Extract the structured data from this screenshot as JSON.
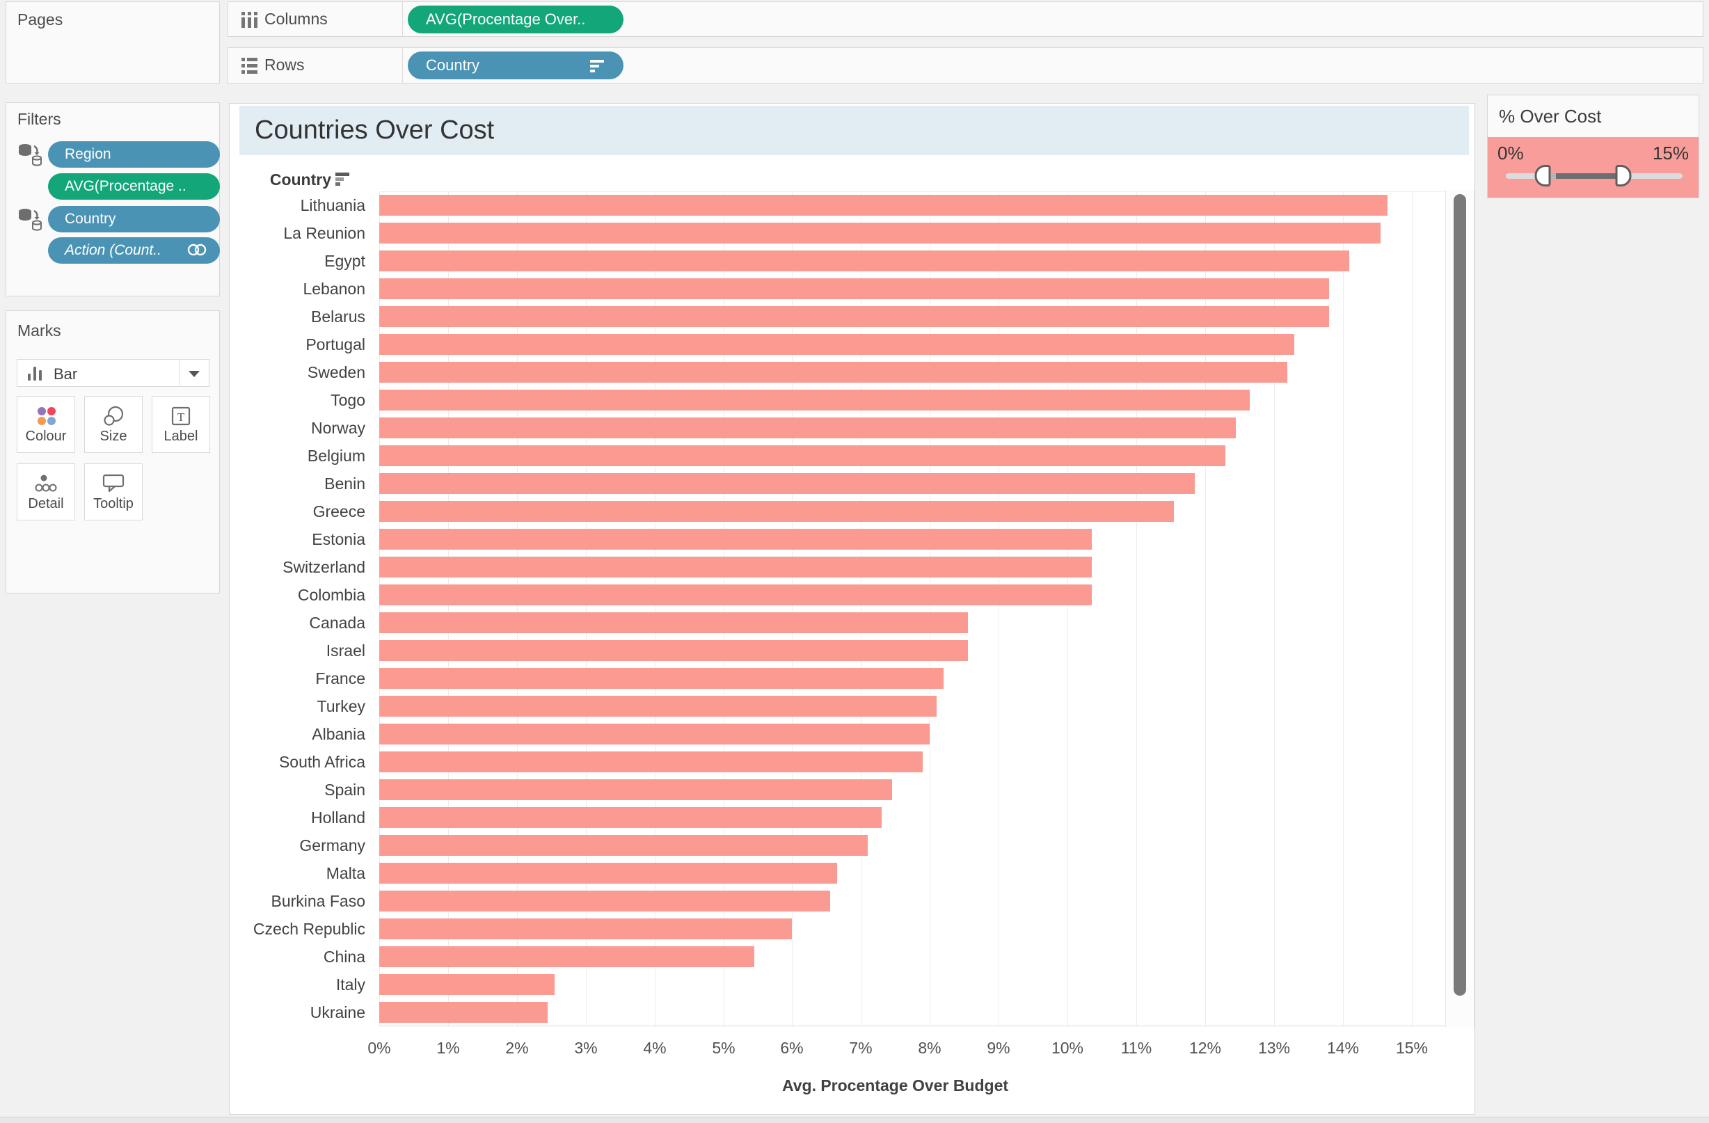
{
  "pages_panel": {
    "title": "Pages"
  },
  "shelves": {
    "columns": {
      "label": "Columns",
      "icon": "columns-icon",
      "pill": {
        "label": "AVG(Procentage Over..",
        "type": "measure",
        "color": "#12a679"
      }
    },
    "rows": {
      "label": "Rows",
      "icon": "rows-icon",
      "pill": {
        "label": "Country",
        "type": "dimension",
        "color": "#4a93b4",
        "sort_icon": "sort-descending-icon"
      }
    }
  },
  "filters_panel": {
    "title": "Filters",
    "pills": [
      {
        "label": "Region",
        "color": "#4a93b4",
        "italic": false,
        "left_icon": "datasource-filter-icon"
      },
      {
        "label": "AVG(Procentage ..",
        "color": "#12a679",
        "italic": false
      },
      {
        "label": "Country",
        "color": "#4a93b4",
        "italic": false,
        "left_icon": "datasource-filter-icon"
      },
      {
        "label": "Action (Count..",
        "color": "#4a93b4",
        "italic": true,
        "right_icon": "action-link-icon"
      }
    ]
  },
  "marks_panel": {
    "title": "Marks",
    "mark_type_label": "Bar",
    "buttons": [
      {
        "label": "Colour",
        "icon": "colour-icon"
      },
      {
        "label": "Size",
        "icon": "size-icon"
      },
      {
        "label": "Label",
        "icon": "label-icon"
      },
      {
        "label": "Detail",
        "icon": "detail-icon"
      },
      {
        "label": "Tooltip",
        "icon": "tooltip-icon"
      }
    ]
  },
  "worksheet": {
    "title": "Countries Over Cost",
    "row_header": "Country",
    "header_sort_icon": "sort-descending-icon"
  },
  "chart_data": {
    "type": "bar",
    "orientation": "horizontal",
    "title": "Countries Over Cost",
    "categories": [
      "Lithuania",
      "La Reunion",
      "Egypt",
      "Lebanon",
      "Belarus",
      "Portugal",
      "Sweden",
      "Togo",
      "Norway",
      "Belgium",
      "Benin",
      "Greece",
      "Estonia",
      "Switzerland",
      "Colombia",
      "Canada",
      "Israel",
      "France",
      "Turkey",
      "Albania",
      "South Africa",
      "Spain",
      "Holland",
      "Germany",
      "Malta",
      "Burkina Faso",
      "Czech Republic",
      "China",
      "Italy",
      "Ukraine"
    ],
    "values": [
      14.65,
      14.55,
      14.1,
      13.8,
      13.8,
      13.3,
      13.2,
      12.65,
      12.45,
      12.3,
      11.85,
      11.55,
      10.35,
      10.35,
      10.35,
      8.55,
      8.55,
      8.2,
      8.1,
      8.0,
      7.9,
      7.45,
      7.3,
      7.1,
      6.65,
      6.55,
      6.0,
      5.45,
      2.55,
      2.45
    ],
    "value_unit": "%",
    "xlabel": "Avg. Procentage Over Budget",
    "x_ticks": [
      "0%",
      "1%",
      "2%",
      "3%",
      "4%",
      "5%",
      "6%",
      "7%",
      "8%",
      "9%",
      "10%",
      "11%",
      "12%",
      "13%",
      "14%",
      "15%"
    ],
    "xlim": [
      0,
      15
    ],
    "grid": true,
    "sort": "descending",
    "bar_color": "#fa9a91"
  },
  "quick_filter": {
    "title": "% Over Cost",
    "min_label": "0%",
    "max_label": "15%",
    "background": "#f99d9a",
    "slider": {
      "left_handle_pct": 21,
      "right_handle_pct": 66.5,
      "range_start_pct": 28.5,
      "range_end_pct": 63
    }
  },
  "colors": {
    "bar": "#fa9a91",
    "pill_blue": "#4a93b4",
    "pill_green": "#12a679",
    "title_band": "#e2edf3",
    "quick_filter_bg": "#f99d9a",
    "scroll_thumb": "#7a7a7a"
  }
}
